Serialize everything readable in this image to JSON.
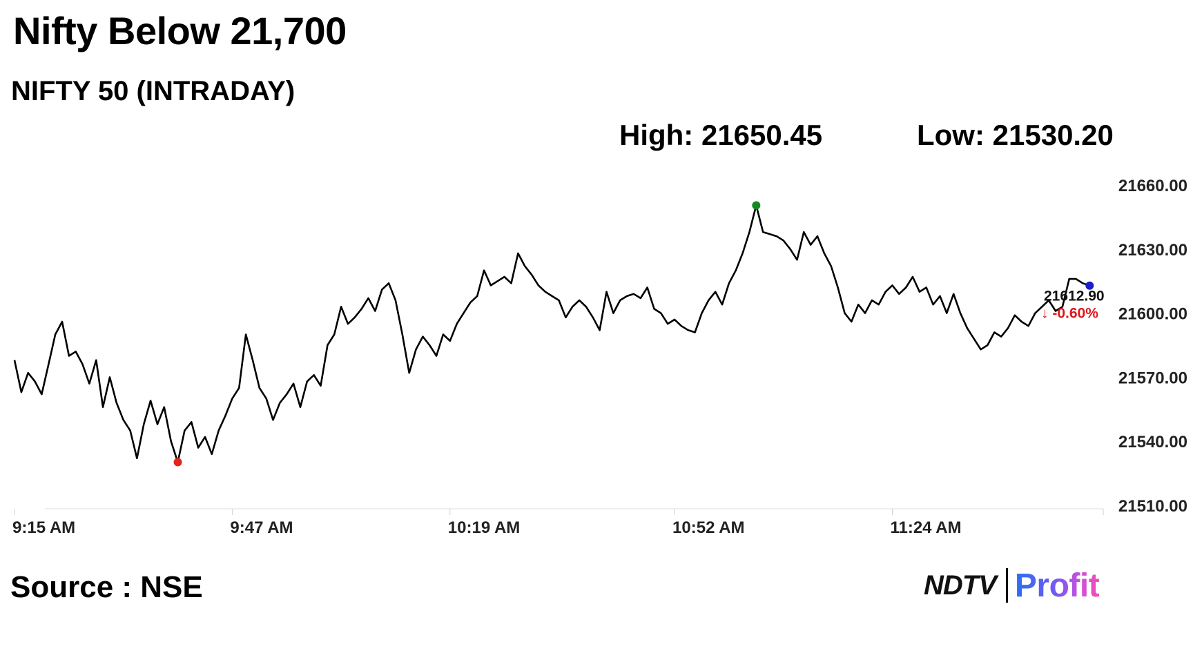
{
  "header": {
    "headline": "Nifty Below 21,700",
    "subtitle": "NIFTY 50 (INTRADAY)",
    "high_text": "High: 21650.45",
    "low_text": "Low: 21530.20"
  },
  "footer": {
    "source": "Source : NSE",
    "brand_left": "NDTV",
    "brand_right": "Profit"
  },
  "chart_data": {
    "type": "line",
    "title": "NIFTY 50 (INTRADAY)",
    "x_start": "9:15 AM",
    "x_end": "11:55 AM",
    "x_ticks": [
      "9:15 AM",
      "9:47 AM",
      "10:19 AM",
      "10:52 AM",
      "11:24 AM"
    ],
    "y_ticks": [
      21510,
      21540,
      21570,
      21600,
      21630,
      21660
    ],
    "y_tick_labels": [
      "21510.00",
      "21540.00",
      "21570.00",
      "21600.00",
      "21630.00",
      "21660.00"
    ],
    "ylim": [
      21510,
      21660
    ],
    "series": [
      {
        "name": "NIFTY 50",
        "color": "#000000",
        "points": [
          [
            "9:15",
            21578
          ],
          [
            "9:16",
            21563
          ],
          [
            "9:17",
            21572
          ],
          [
            "9:18",
            21568
          ],
          [
            "9:19",
            21562
          ],
          [
            "9:20",
            21576
          ],
          [
            "9:21",
            21590
          ],
          [
            "9:22",
            21596
          ],
          [
            "9:23",
            21580
          ],
          [
            "9:24",
            21582
          ],
          [
            "9:25",
            21576
          ],
          [
            "9:26",
            21567
          ],
          [
            "9:27",
            21578
          ],
          [
            "9:28",
            21556
          ],
          [
            "9:29",
            21570
          ],
          [
            "9:30",
            21558
          ],
          [
            "9:31",
            21550
          ],
          [
            "9:32",
            21545
          ],
          [
            "9:33",
            21532
          ],
          [
            "9:34",
            21548
          ],
          [
            "9:35",
            21559
          ],
          [
            "9:36",
            21548
          ],
          [
            "9:37",
            21556
          ],
          [
            "9:38",
            21540
          ],
          [
            "9:39",
            21530.2
          ],
          [
            "9:40",
            21545
          ],
          [
            "9:41",
            21549
          ],
          [
            "9:42",
            21537
          ],
          [
            "9:43",
            21542
          ],
          [
            "9:44",
            21534
          ],
          [
            "9:45",
            21545
          ],
          [
            "9:46",
            21552
          ],
          [
            "9:47",
            21560
          ],
          [
            "9:48",
            21565
          ],
          [
            "9:49",
            21590
          ],
          [
            "9:50",
            21578
          ],
          [
            "9:51",
            21565
          ],
          [
            "9:52",
            21560
          ],
          [
            "9:53",
            21550
          ],
          [
            "9:54",
            21558
          ],
          [
            "9:55",
            21562
          ],
          [
            "9:56",
            21567
          ],
          [
            "9:57",
            21556
          ],
          [
            "9:58",
            21568
          ],
          [
            "9:59",
            21571
          ],
          [
            "10:00",
            21566
          ],
          [
            "10:01",
            21585
          ],
          [
            "10:02",
            21590
          ],
          [
            "10:03",
            21603
          ],
          [
            "10:04",
            21595
          ],
          [
            "10:05",
            21598
          ],
          [
            "10:06",
            21602
          ],
          [
            "10:07",
            21607
          ],
          [
            "10:08",
            21601
          ],
          [
            "10:09",
            21611
          ],
          [
            "10:10",
            21614
          ],
          [
            "10:11",
            21606
          ],
          [
            "10:12",
            21590
          ],
          [
            "10:13",
            21572
          ],
          [
            "10:14",
            21583
          ],
          [
            "10:15",
            21589
          ],
          [
            "10:16",
            21585
          ],
          [
            "10:17",
            21580
          ],
          [
            "10:18",
            21590
          ],
          [
            "10:19",
            21587
          ],
          [
            "10:20",
            21595
          ],
          [
            "10:21",
            21600
          ],
          [
            "10:22",
            21605
          ],
          [
            "10:23",
            21608
          ],
          [
            "10:24",
            21620
          ],
          [
            "10:25",
            21613
          ],
          [
            "10:26",
            21615
          ],
          [
            "10:27",
            21617
          ],
          [
            "10:28",
            21614
          ],
          [
            "10:29",
            21628
          ],
          [
            "10:30",
            21622
          ],
          [
            "10:31",
            21618
          ],
          [
            "10:32",
            21613
          ],
          [
            "10:33",
            21610
          ],
          [
            "10:34",
            21608
          ],
          [
            "10:35",
            21606
          ],
          [
            "10:36",
            21598
          ],
          [
            "10:37",
            21603
          ],
          [
            "10:38",
            21606
          ],
          [
            "10:39",
            21603
          ],
          [
            "10:40",
            21598
          ],
          [
            "10:41",
            21592
          ],
          [
            "10:42",
            21610
          ],
          [
            "10:43",
            21600
          ],
          [
            "10:44",
            21606
          ],
          [
            "10:45",
            21608
          ],
          [
            "10:46",
            21609
          ],
          [
            "10:47",
            21607
          ],
          [
            "10:48",
            21612
          ],
          [
            "10:49",
            21602
          ],
          [
            "10:50",
            21600
          ],
          [
            "10:51",
            21595
          ],
          [
            "10:52",
            21597
          ],
          [
            "10:53",
            21594
          ],
          [
            "10:54",
            21592
          ],
          [
            "10:55",
            21591
          ],
          [
            "10:56",
            21600
          ],
          [
            "10:57",
            21606
          ],
          [
            "10:58",
            21610
          ],
          [
            "10:59",
            21604
          ],
          [
            "11:00",
            21614
          ],
          [
            "11:01",
            21620
          ],
          [
            "11:02",
            21628
          ],
          [
            "11:03",
            21638
          ],
          [
            "11:04",
            21650.45
          ],
          [
            "11:05",
            21638
          ],
          [
            "11:06",
            21637
          ],
          [
            "11:07",
            21636
          ],
          [
            "11:08",
            21634
          ],
          [
            "11:09",
            21630
          ],
          [
            "11:10",
            21625
          ],
          [
            "11:11",
            21638
          ],
          [
            "11:12",
            21632
          ],
          [
            "11:13",
            21636
          ],
          [
            "11:14",
            21628
          ],
          [
            "11:15",
            21622
          ],
          [
            "11:16",
            21612
          ],
          [
            "11:17",
            21600
          ],
          [
            "11:18",
            21596
          ],
          [
            "11:19",
            21604
          ],
          [
            "11:20",
            21600
          ],
          [
            "11:21",
            21606
          ],
          [
            "11:22",
            21604
          ],
          [
            "11:23",
            21610
          ],
          [
            "11:24",
            21613
          ],
          [
            "11:25",
            21609
          ],
          [
            "11:26",
            21612
          ],
          [
            "11:27",
            21617
          ],
          [
            "11:28",
            21610
          ],
          [
            "11:29",
            21612
          ],
          [
            "11:30",
            21604
          ],
          [
            "11:31",
            21608
          ],
          [
            "11:32",
            21600
          ],
          [
            "11:33",
            21609
          ],
          [
            "11:34",
            21600
          ],
          [
            "11:35",
            21593
          ],
          [
            "11:36",
            21588
          ],
          [
            "11:37",
            21583
          ],
          [
            "11:38",
            21585
          ],
          [
            "11:39",
            21591
          ],
          [
            "11:40",
            21589
          ],
          [
            "11:41",
            21593
          ],
          [
            "11:42",
            21599
          ],
          [
            "11:43",
            21596
          ],
          [
            "11:44",
            21594
          ],
          [
            "11:45",
            21600
          ],
          [
            "11:46",
            21603
          ],
          [
            "11:47",
            21606
          ],
          [
            "11:48",
            21601
          ],
          [
            "11:49",
            21603
          ],
          [
            "11:50",
            21616
          ],
          [
            "11:51",
            21616
          ],
          [
            "11:52",
            21614
          ],
          [
            "11:53",
            21612.9
          ]
        ]
      }
    ],
    "markers": {
      "low": {
        "time": "9:39",
        "value": 21530.2,
        "color": "#e3261b"
      },
      "high": {
        "time": "11:04",
        "value": 21650.45,
        "color": "#138a1d"
      },
      "last": {
        "time": "11:53",
        "value": 21612.9,
        "color": "#1a1fc7"
      }
    },
    "last_value_label": "21612.90",
    "change_label": "-0.60%",
    "change_arrow": "↓",
    "change_color": "#e0161b",
    "grid": false,
    "legend": "none"
  }
}
